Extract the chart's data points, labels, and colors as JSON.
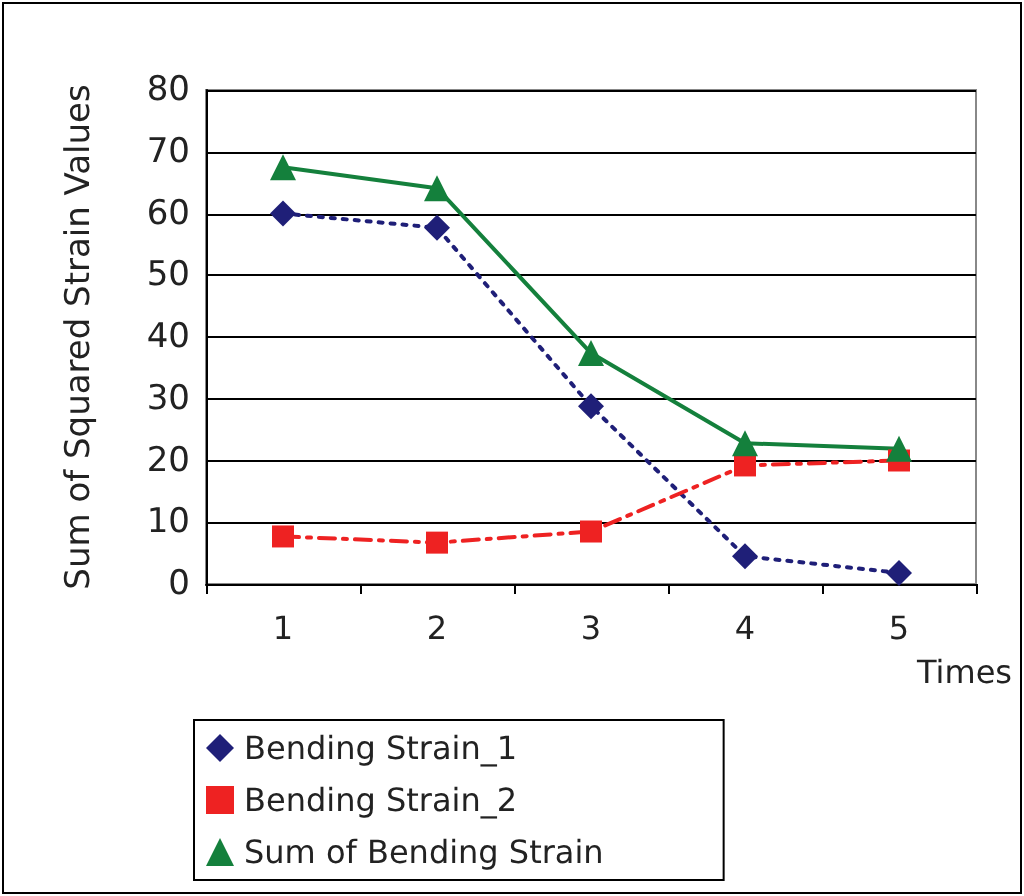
{
  "chart_data": {
    "type": "line",
    "xlabel": "Times",
    "ylabel": "Sum of Squared Strain Values",
    "categories": [
      "1",
      "2",
      "3",
      "4",
      "5"
    ],
    "series": [
      {
        "name": "Bending Strain_1",
        "color": "#1f1f78",
        "values": [
          60,
          57.7,
          28.8,
          4.5,
          1.8
        ],
        "marker": "diamond",
        "line_style": "dotted"
      },
      {
        "name": "Bending Strain_2",
        "color": "#ee2222",
        "values": [
          7.7,
          6.7,
          8.5,
          19.2,
          20
        ],
        "marker": "square",
        "line_style": "dashed"
      },
      {
        "name": "Sum of Bending Strain",
        "color": "#14803c",
        "values": [
          67.5,
          64.1,
          37.4,
          22.8,
          21.9
        ],
        "marker": "triangle",
        "line_style": "solid"
      }
    ],
    "ylim": [
      0,
      80
    ],
    "yticks": [
      0,
      10,
      20,
      30,
      40,
      50,
      60,
      70,
      80
    ],
    "grid": "y",
    "legend": "bottom"
  }
}
